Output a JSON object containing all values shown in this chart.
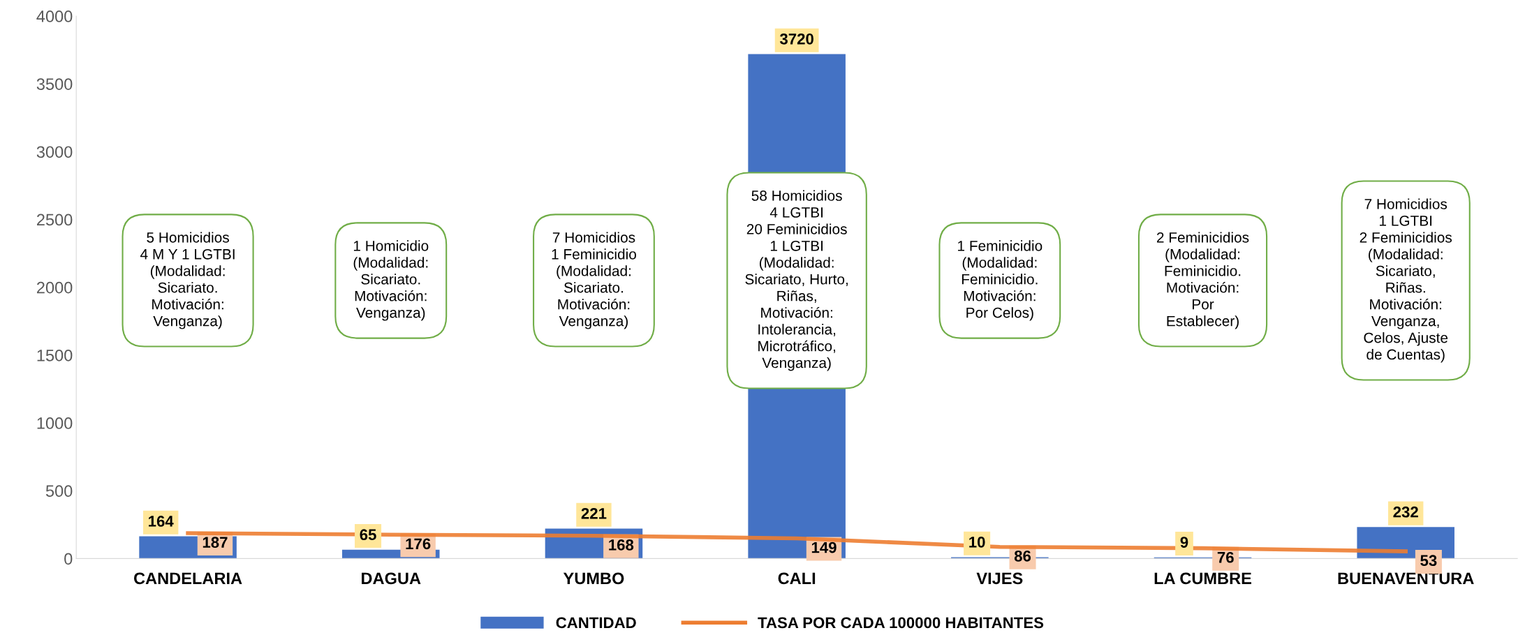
{
  "chart_data": {
    "type": "bar",
    "categories": [
      "CANDELARIA",
      "DAGUA",
      "YUMBO",
      "CALI",
      "VIJES",
      "LA CUMBRE",
      "BUENAVENTURA"
    ],
    "series": [
      {
        "name": "CANTIDAD",
        "color": "#4472c4",
        "values": [
          164,
          65,
          221,
          3720,
          10,
          9,
          232
        ]
      },
      {
        "name": "TASA POR CADA 100000 HABITANTES",
        "type": "line",
        "color": "#ed7d31",
        "values": [
          187,
          176,
          168,
          149,
          86,
          76,
          53
        ]
      }
    ],
    "ylim": [
      0,
      4000
    ],
    "yticks": [
      0,
      500,
      1000,
      1500,
      2000,
      2500,
      3000,
      3500,
      4000
    ],
    "legend": "bottom",
    "data_labels": true,
    "line_style": "solid",
    "annotations": [
      "5 Homicidios\n4 M Y 1 LGTBI\n(Modalidad:\nSicariato.\nMotivación:\nVenganza)",
      "1 Homicidio\n(Modalidad:\nSicariato.\nMotivación:\nVenganza)",
      "7 Homicidios\n1 Feminicidio\n(Modalidad:\nSicariato.\nMotivación:\nVenganza)",
      "58 Homicidios\n4 LGTBI\n20 Feminicidios\n1 LGTBI\n(Modalidad:\nSicariato, Hurto,\nRiñas,\nMotivación:\nIntolerancia,\nMicrotráfico,\nVenganza)",
      "1 Feminicidio\n(Modalidad:\nFeminicidio.\nMotivación:\nPor Celos)",
      "2 Feminicidios\n(Modalidad:\nFeminicidio.\nMotivación:\nPor\nEstablecer)",
      "7 Homicidios\n1 LGTBI\n2 Feminicidios\n(Modalidad:\nSicariato,\nRiñas.\nMotivación:\nVenganza,\nCelos, Ajuste\nde Cuentas)"
    ]
  }
}
